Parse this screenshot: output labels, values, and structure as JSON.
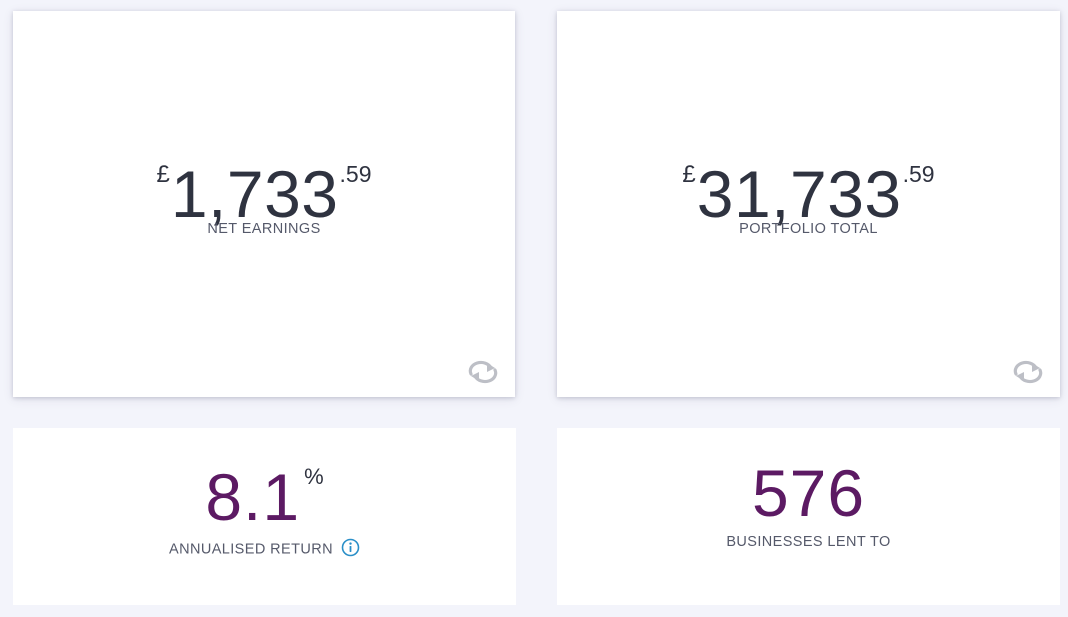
{
  "cards": {
    "net_earnings": {
      "currency": "£",
      "whole": "1,733",
      "decimals": ".59",
      "label": "NET EARNINGS",
      "refresh_icon": "refresh-icon"
    },
    "portfolio_total": {
      "currency": "£",
      "whole": "31,733",
      "decimals": ".59",
      "label": "PORTFOLIO TOTAL",
      "refresh_icon": "refresh-icon"
    },
    "annualised_return": {
      "value": "8.1",
      "unit": "%",
      "label": "ANNUALISED RETURN",
      "info_icon": "info-icon"
    },
    "businesses_lent_to": {
      "value": "576",
      "label": "BUSINESSES LENT TO"
    }
  },
  "colors": {
    "background": "#f3f4fb",
    "card": "#ffffff",
    "amount_text": "#2f3340",
    "accent_purple": "#5c1a63",
    "label_text": "#55596a",
    "info_blue": "#2a8fc8",
    "refresh_grey": "#bdbfc6"
  }
}
